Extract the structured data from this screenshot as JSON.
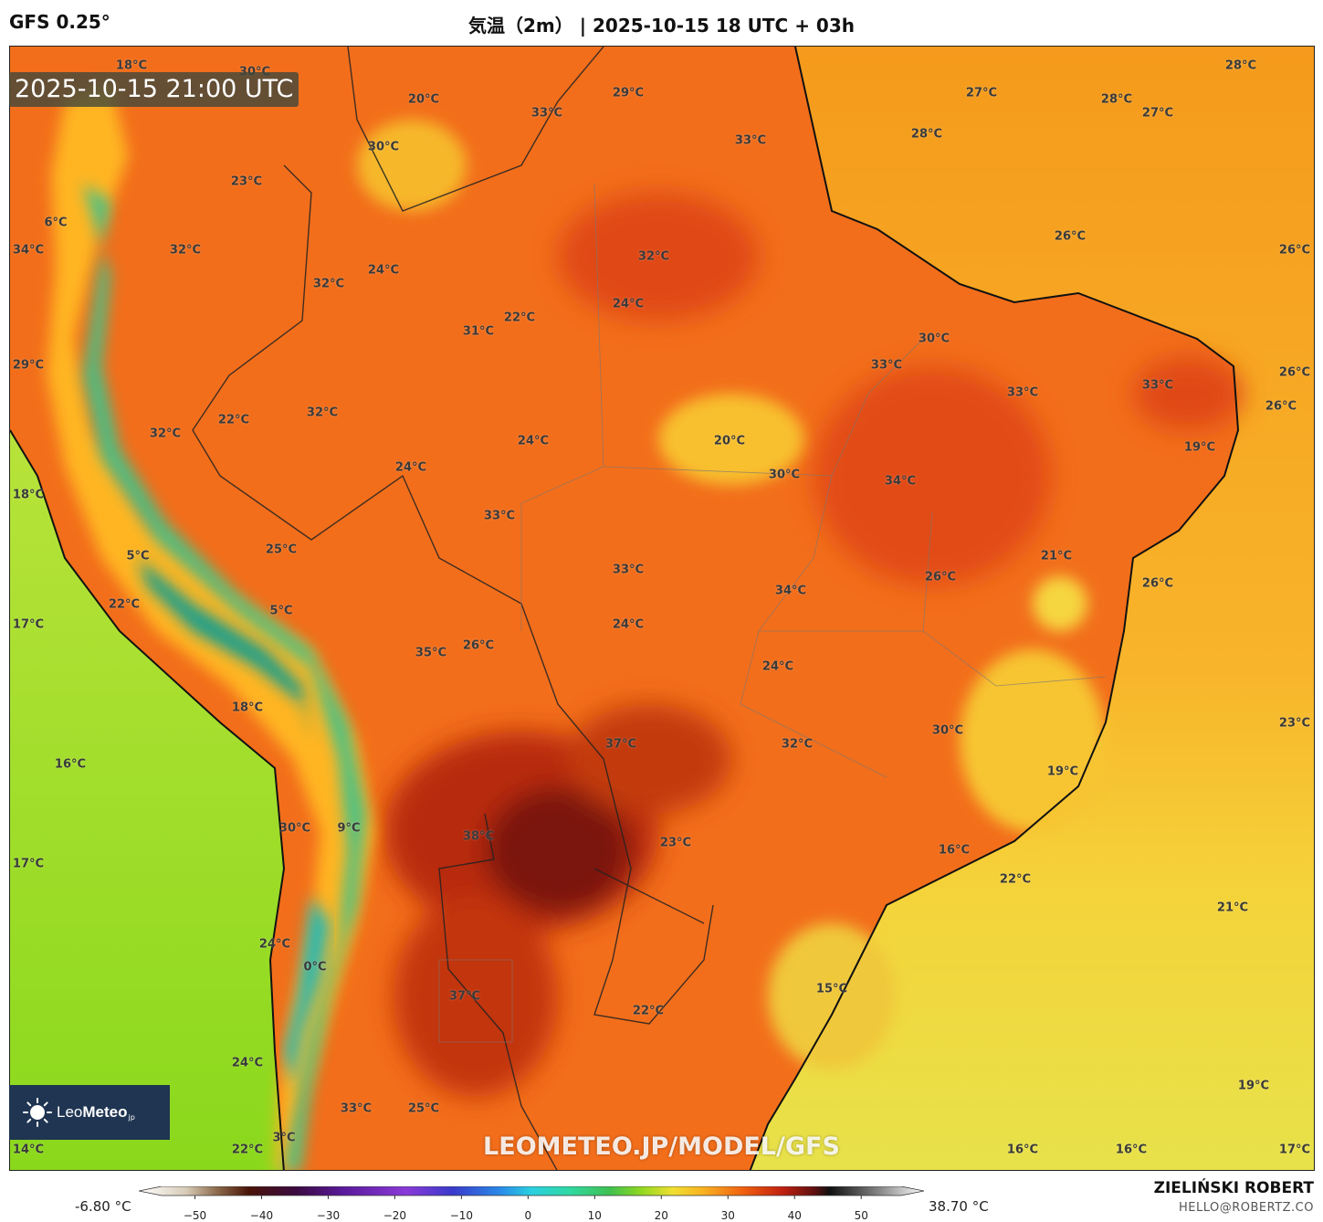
{
  "header": {
    "model": "GFS 0.25°",
    "title": "気温（2m） | 2025-10-15 18 UTC + 03h"
  },
  "map": {
    "valid_time": "2025-10-15 21:00 UTC",
    "watermark": "LEOMETEO.JP/MODEL/GFS",
    "logo": {
      "name_light": "Leo",
      "name_bold": "Meteo",
      "suffix": "jp"
    },
    "temperature_labels": [
      {
        "text": "18°C"
      },
      {
        "text": "30°C"
      },
      {
        "text": "20°C"
      },
      {
        "text": "33°C"
      },
      {
        "text": "29°C"
      },
      {
        "text": "33°C"
      },
      {
        "text": "27°C"
      },
      {
        "text": "28°C"
      },
      {
        "text": "28°C"
      },
      {
        "text": "27°C"
      },
      {
        "text": "28°C"
      },
      {
        "text": "30°C"
      },
      {
        "text": "23°C"
      },
      {
        "text": "6°C"
      },
      {
        "text": "34°C"
      },
      {
        "text": "32°C"
      },
      {
        "text": "24°C"
      },
      {
        "text": "32°C"
      },
      {
        "text": "32°C"
      },
      {
        "text": "26°C"
      },
      {
        "text": "26°C"
      },
      {
        "text": "24°C"
      },
      {
        "text": "22°C"
      },
      {
        "text": "31°C"
      },
      {
        "text": "30°C"
      },
      {
        "text": "29°C"
      },
      {
        "text": "33°C"
      },
      {
        "text": "33°C"
      },
      {
        "text": "33°C"
      },
      {
        "text": "26°C"
      },
      {
        "text": "26°C"
      },
      {
        "text": "22°C"
      },
      {
        "text": "32°C"
      },
      {
        "text": "32°C"
      },
      {
        "text": "24°C"
      },
      {
        "text": "20°C"
      },
      {
        "text": "19°C"
      },
      {
        "text": "24°C"
      },
      {
        "text": "30°C"
      },
      {
        "text": "34°C"
      },
      {
        "text": "18°C"
      },
      {
        "text": "33°C"
      },
      {
        "text": "25°C"
      },
      {
        "text": "5°C"
      },
      {
        "text": "21°C"
      },
      {
        "text": "33°C"
      },
      {
        "text": "26°C"
      },
      {
        "text": "26°C"
      },
      {
        "text": "34°C"
      },
      {
        "text": "22°C"
      },
      {
        "text": "5°C"
      },
      {
        "text": "17°C"
      },
      {
        "text": "24°C"
      },
      {
        "text": "35°C"
      },
      {
        "text": "26°C"
      },
      {
        "text": "24°C"
      },
      {
        "text": "18°C"
      },
      {
        "text": "23°C"
      },
      {
        "text": "30°C"
      },
      {
        "text": "37°C"
      },
      {
        "text": "32°C"
      },
      {
        "text": "16°C"
      },
      {
        "text": "19°C"
      },
      {
        "text": "30°C"
      },
      {
        "text": "9°C"
      },
      {
        "text": "38°C"
      },
      {
        "text": "23°C"
      },
      {
        "text": "17°C"
      },
      {
        "text": "16°C"
      },
      {
        "text": "22°C"
      },
      {
        "text": "21°C"
      },
      {
        "text": "24°C"
      },
      {
        "text": "0°C"
      },
      {
        "text": "15°C"
      },
      {
        "text": "37°C"
      },
      {
        "text": "22°C"
      },
      {
        "text": "24°C"
      },
      {
        "text": "19°C"
      },
      {
        "text": "33°C"
      },
      {
        "text": "25°C"
      },
      {
        "text": "14°C"
      },
      {
        "text": "22°C"
      },
      {
        "text": "3°C"
      },
      {
        "text": "16°C"
      },
      {
        "text": "16°C"
      },
      {
        "text": "17°C"
      }
    ]
  },
  "legend": {
    "min_label": "-6.80 °C",
    "max_label": "38.70 °C",
    "ticks": [
      "−50",
      "−40",
      "−30",
      "−20",
      "−10",
      "0",
      "10",
      "20",
      "30",
      "40",
      "50"
    ],
    "range": [
      -55,
      56
    ]
  },
  "credits": {
    "author": "ZIELIŃSKI ROBERT",
    "email": "HELLO@ROBERTZ.CO"
  }
}
